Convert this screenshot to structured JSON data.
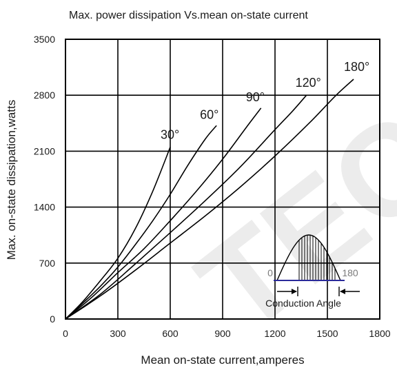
{
  "chart_data": {
    "type": "line",
    "title": "Max. power dissipation Vs.mean on-state current",
    "xlabel": "Mean on-state current,amperes",
    "ylabel": "Max. on-state dissipation,watts",
    "xlim": [
      0,
      1800
    ],
    "ylim": [
      0,
      3500
    ],
    "x_ticks": [
      "0",
      "300",
      "600",
      "900",
      "1200",
      "1500",
      "1800"
    ],
    "y_ticks": [
      "0",
      "700",
      "1400",
      "2100",
      "2800",
      "3500"
    ],
    "grid": true,
    "series": [
      {
        "name": "30°",
        "x": [
          0,
          100,
          200,
          300,
          400,
          500,
          600
        ],
        "y": [
          0,
          220,
          480,
          760,
          1130,
          1600,
          2150
        ]
      },
      {
        "name": "60°",
        "x": [
          0,
          100,
          200,
          300,
          400,
          500,
          600,
          700,
          800,
          865
        ],
        "y": [
          0,
          200,
          410,
          650,
          930,
          1230,
          1560,
          1920,
          2250,
          2420
        ]
      },
      {
        "name": "90°",
        "x": [
          0,
          150,
          300,
          450,
          600,
          750,
          900,
          1050,
          1120
        ],
        "y": [
          0,
          270,
          580,
          880,
          1230,
          1600,
          2000,
          2440,
          2640
        ]
      },
      {
        "name": "120°",
        "x": [
          0,
          200,
          400,
          600,
          800,
          1000,
          1200,
          1300,
          1380
        ],
        "y": [
          0,
          310,
          690,
          1080,
          1480,
          1900,
          2370,
          2600,
          2800
        ]
      },
      {
        "name": "180°",
        "x": [
          0,
          200,
          400,
          600,
          800,
          1000,
          1200,
          1400,
          1550,
          1650
        ],
        "y": [
          0,
          290,
          610,
          950,
          1290,
          1650,
          2040,
          2460,
          2800,
          3000
        ]
      }
    ]
  },
  "inset": {
    "start_label": "0",
    "end_label": "180",
    "caption": "Conduction Angle"
  },
  "watermark": "TEC"
}
